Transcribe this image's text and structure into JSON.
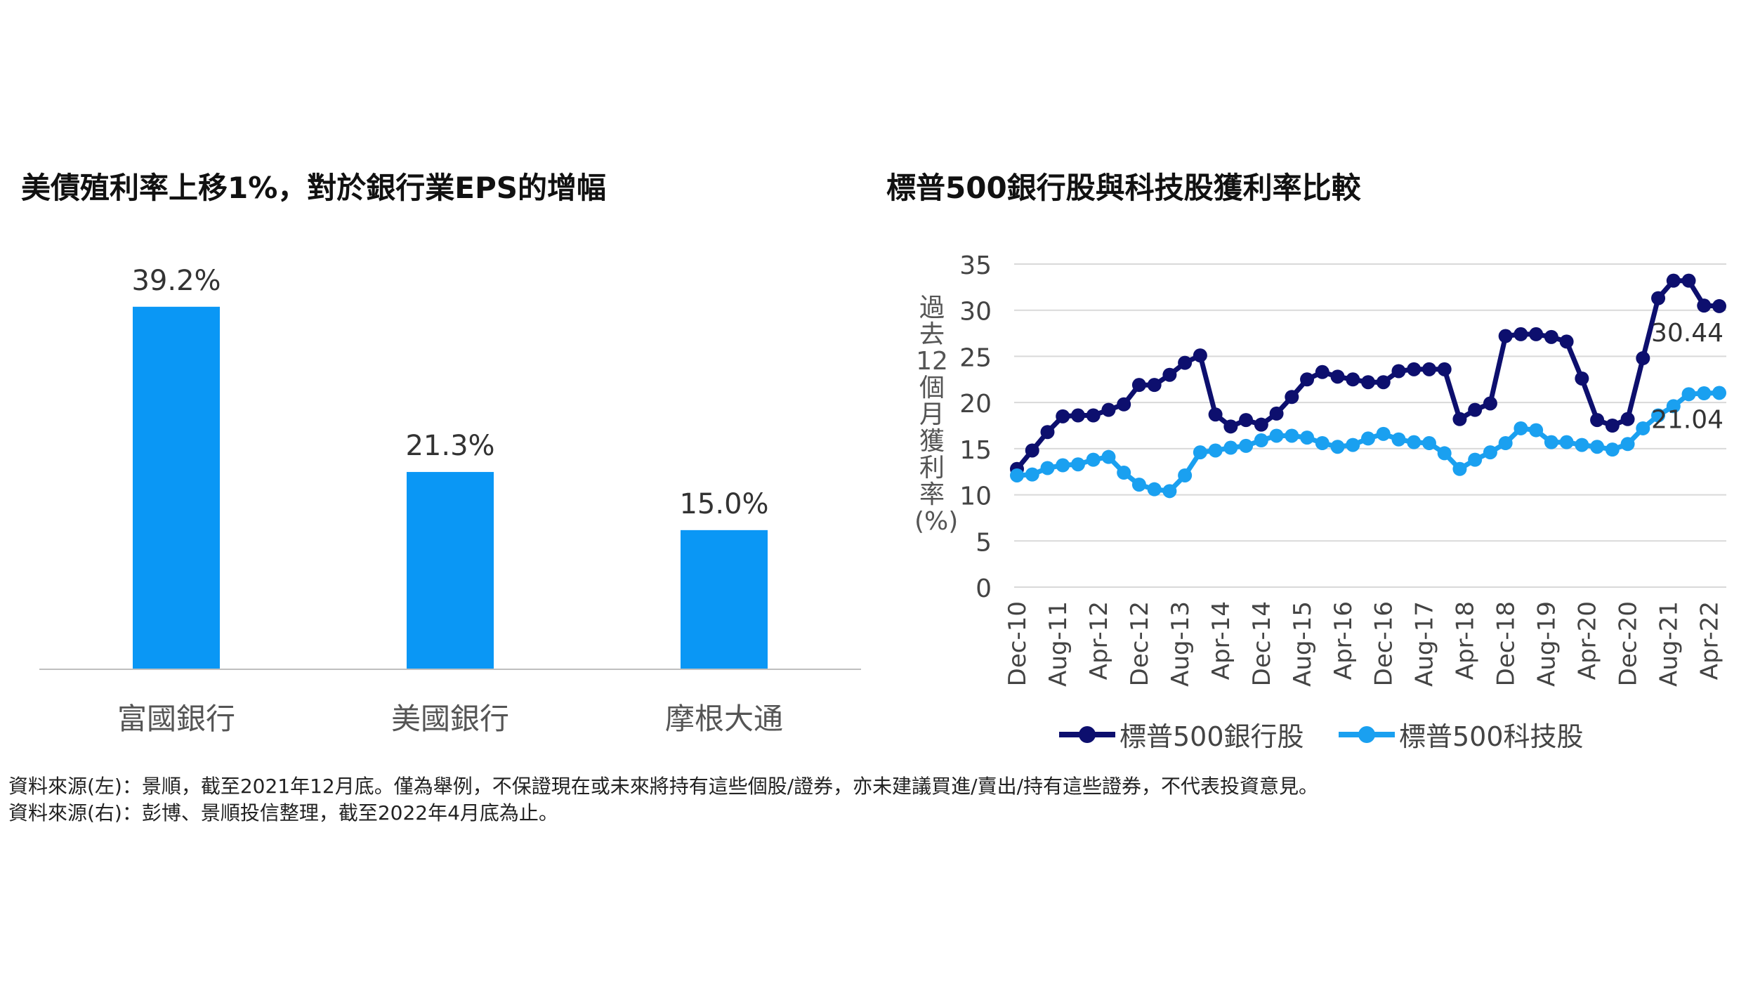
{
  "left_title": "美債殖利率上移1%，對於銀行業EPS的增幅",
  "right_title": "標普500銀行股與科技股獲利率比較",
  "source_left": "資料來源(左)：景順，截至2021年12月底。僅為舉例，不保證現在或未來將持有這些個股/證券，亦未建議買進/賣出/持有這些證券，不代表投資意見。",
  "source_right": "資料來源(右)：彭博、景順投信整理，截至2022年4月底為止。",
  "colors": {
    "bar": "#0a97f5",
    "bank": "#0d0f6e",
    "tech": "#1aa0f0",
    "grid": "#d9d9d9"
  },
  "chart_data": [
    {
      "type": "bar",
      "title": "美債殖利率上移1%，對於銀行業EPS的增幅",
      "categories": [
        "富國銀行",
        "美國銀行",
        "摩根大通"
      ],
      "values": [
        39.2,
        21.3,
        15.0
      ],
      "value_labels": [
        "39.2%",
        "21.3%",
        "15.0%"
      ],
      "ylim": [
        0,
        42
      ],
      "grid": false
    },
    {
      "type": "line",
      "title": "標普500銀行股與科技股獲利率比較",
      "ylabel": "過去12個月獲利率(%)",
      "ylim": [
        0,
        35
      ],
      "yticks": [
        0,
        5,
        10,
        15,
        20,
        25,
        30,
        35
      ],
      "x_tick_labels": [
        "Dec-10",
        "Aug-11",
        "Apr-12",
        "Dec-12",
        "Aug-13",
        "Apr-14",
        "Dec-14",
        "Aug-15",
        "Apr-16",
        "Dec-16",
        "Aug-17",
        "Apr-18",
        "Dec-18",
        "Aug-19",
        "Apr-20",
        "Dec-20",
        "Aug-21",
        "Apr-22"
      ],
      "x_start": "Dec-10",
      "x_frequency": "quarterly",
      "legend_position": "bottom",
      "grid": true,
      "series": [
        {
          "name": "標普500銀行股",
          "color": "#0d0f6e",
          "end_label": "30.44",
          "values": [
            12.8,
            14.8,
            16.8,
            18.5,
            18.6,
            18.6,
            19.2,
            19.8,
            21.9,
            21.9,
            23.0,
            24.3,
            25.1,
            18.7,
            17.4,
            18.1,
            17.6,
            18.8,
            20.6,
            22.5,
            23.3,
            22.8,
            22.5,
            22.2,
            22.2,
            23.4,
            23.6,
            23.6,
            23.6,
            18.2,
            19.2,
            19.9,
            27.2,
            27.4,
            27.4,
            27.1,
            26.6,
            22.6,
            18.1,
            17.5,
            18.2,
            24.8,
            31.3,
            33.2,
            33.2,
            30.5,
            30.44
          ]
        },
        {
          "name": "標普500科技股",
          "color": "#1aa0f0",
          "end_label": "21.04",
          "values": [
            12.1,
            12.2,
            12.9,
            13.2,
            13.3,
            13.8,
            14.1,
            12.4,
            11.1,
            10.6,
            10.4,
            12.1,
            14.6,
            14.8,
            15.1,
            15.3,
            15.9,
            16.4,
            16.4,
            16.2,
            15.6,
            15.2,
            15.4,
            16.1,
            16.6,
            16.0,
            15.7,
            15.6,
            14.5,
            12.8,
            13.8,
            14.6,
            15.6,
            17.2,
            17.0,
            15.7,
            15.7,
            15.4,
            15.2,
            14.9,
            15.5,
            17.2,
            18.6,
            19.6,
            20.9,
            21.0,
            21.04
          ]
        }
      ]
    }
  ]
}
